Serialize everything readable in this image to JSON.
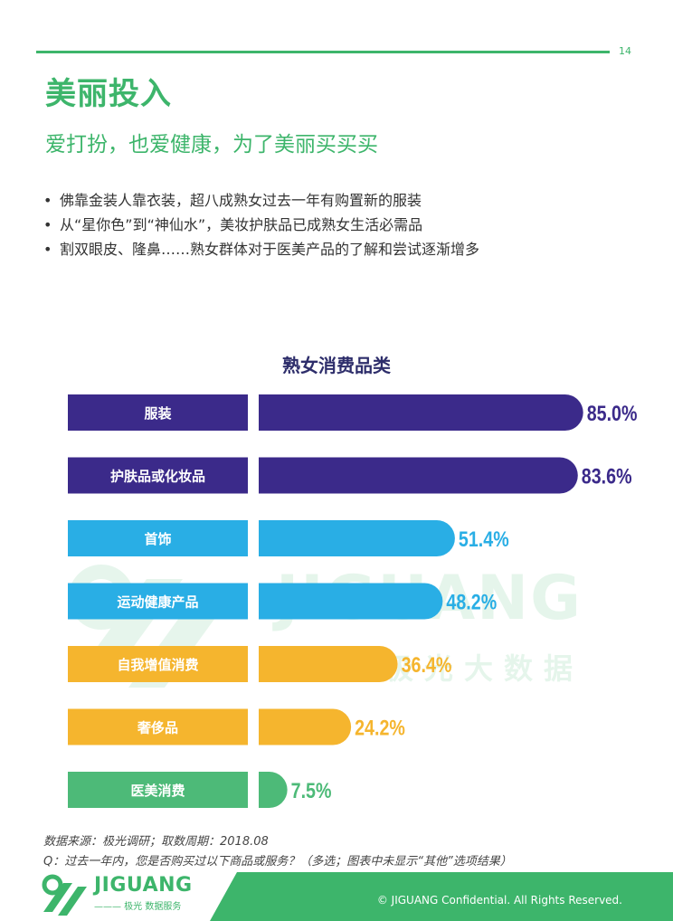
{
  "page_number": "14",
  "title": "美丽投入",
  "subtitle": "爱打扮，也爱健康，为了美丽买买买",
  "bullets": [
    "佛靠金装人靠衣装，超八成熟女过去一年有购置新的服装",
    "从“星你色”到“神仙水”，美妆护肤品已成熟女生活必需品",
    "割双眼皮、隆鼻……熟女群体对于医美产品的了解和尝试逐渐增多"
  ],
  "bullet_mark": "•",
  "watermark": {
    "word": "JIGUANG",
    "cn": "极光大数据"
  },
  "chart_data": {
    "type": "bar",
    "orientation": "horizontal",
    "title": "熟女消费品类",
    "categories": [
      "服装",
      "护肤品或化妆品",
      "首饰",
      "运动健康产品",
      "自我增值消费",
      "奢侈品",
      "医美消费"
    ],
    "values": [
      85.0,
      83.6,
      51.4,
      48.2,
      36.4,
      24.2,
      7.5
    ],
    "value_labels": [
      "85.0%",
      "83.6%",
      "51.4%",
      "48.2%",
      "36.4%",
      "24.2%",
      "7.5%"
    ],
    "unit": "%",
    "xlim": [
      0,
      100
    ],
    "colors": [
      "#3b2a8a",
      "#3b2a8a",
      "#29aee5",
      "#29aee5",
      "#f5b52e",
      "#f5b52e",
      "#4dba78"
    ],
    "grid": false,
    "legend": "none"
  },
  "source_line": "数据来源：极光调研；取数周期：2018.08",
  "question_line": "Q：过去一年内，您是否购买过以下商品或服务？（多选；图表中未显示“其他”选项结果）",
  "footer": {
    "logo": "JIGUANG",
    "logo_sub": "——— 极光 数据服务",
    "copyright": "© JIGUANG Confidential. All Rights Reserved.",
    "band_color": "#3db56b"
  }
}
